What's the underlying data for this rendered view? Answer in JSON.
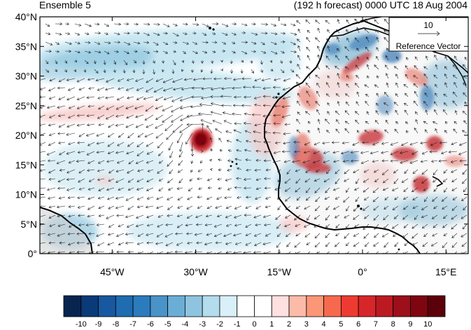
{
  "header": {
    "left_title": "Ensemble 5",
    "right_title": "(192 h forecast) 0000 UTC 18 Aug 2004"
  },
  "map": {
    "field": "wind vectors over shaded anomaly field",
    "lat_ticks": [
      "0°",
      "5°N",
      "10°N",
      "15°N",
      "20°N",
      "25°N",
      "30°N",
      "35°N",
      "40°N"
    ],
    "lon_ticks": [
      "45°W",
      "30°W",
      "15°W",
      "0°",
      "15°E"
    ],
    "lat_range": [
      0,
      40
    ],
    "lon_range": [
      -58,
      19
    ],
    "reference_vector": {
      "value": "10",
      "label": "Reference Vector"
    },
    "features": [
      {
        "type": "cyclone",
        "lat": 20.5,
        "lon": -29,
        "sign": "positive",
        "value": 10
      },
      {
        "type": "warm band",
        "description": "NW Africa / West African coast positive anomalies"
      },
      {
        "type": "cool band",
        "description": "subtropical Atlantic negative anomalies"
      }
    ]
  },
  "colorbar": {
    "labels": [
      "-10",
      "-9",
      "-8",
      "-7",
      "-6",
      "-5",
      "-4",
      "-3",
      "-2",
      "-1",
      "0",
      "1",
      "2",
      "3",
      "4",
      "5",
      "6",
      "7",
      "8",
      "9",
      "10"
    ],
    "colors": [
      "#08254f",
      "#0a3a78",
      "#1858a0",
      "#1f6cb0",
      "#2c7bbd",
      "#4a93c8",
      "#6aaed6",
      "#8fc4e0",
      "#b3dcec",
      "#daf0f8",
      "#ffffff",
      "#ffffff",
      "#fde0df",
      "#fcbba8",
      "#fb9676",
      "#f7694f",
      "#ee3b32",
      "#d7262a",
      "#bc1a23",
      "#9c0f1b",
      "#7f0510",
      "#5c000a"
    ]
  }
}
